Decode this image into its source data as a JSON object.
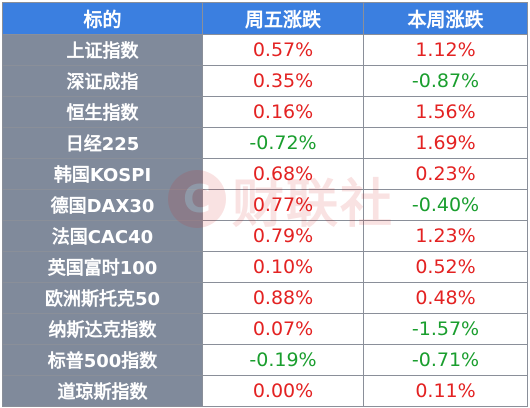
{
  "header": {
    "col1": "标的",
    "col2": "周五涨跌",
    "col3": "本周涨跌"
  },
  "rows": [
    {
      "name": "上证指数",
      "fri": "0.57%",
      "week": "1.12%"
    },
    {
      "name": "深证成指",
      "fri": "0.35%",
      "week": "-0.87%"
    },
    {
      "name": "恒生指数",
      "fri": "0.16%",
      "week": "1.56%"
    },
    {
      "name": "日经225",
      "fri": "-0.72%",
      "week": "1.69%"
    },
    {
      "name": "韩国KOSPI",
      "fri": "0.68%",
      "week": "0.23%"
    },
    {
      "name": "德国DAX30",
      "fri": "0.77%",
      "week": "-0.40%"
    },
    {
      "name": "法国CAC40",
      "fri": "0.79%",
      "week": "1.23%"
    },
    {
      "name": "英国富时100",
      "fri": "0.10%",
      "week": "0.52%"
    },
    {
      "name": "欧洲斯托克50",
      "fri": "0.88%",
      "week": "0.48%"
    },
    {
      "name": "纳斯达克指数",
      "fri": "0.07%",
      "week": "-1.57%"
    },
    {
      "name": "标普500指数",
      "fri": "-0.19%",
      "week": "-0.71%"
    },
    {
      "name": "道琼斯指数",
      "fri": "0.00%",
      "week": "0.11%"
    }
  ],
  "watermark": {
    "logo": "C",
    "text": "财联社"
  },
  "colors": {
    "header_bg": "#3b7fe0",
    "name_bg": "#808a9b",
    "up": "#e32222",
    "down": "#1a9e2e"
  }
}
